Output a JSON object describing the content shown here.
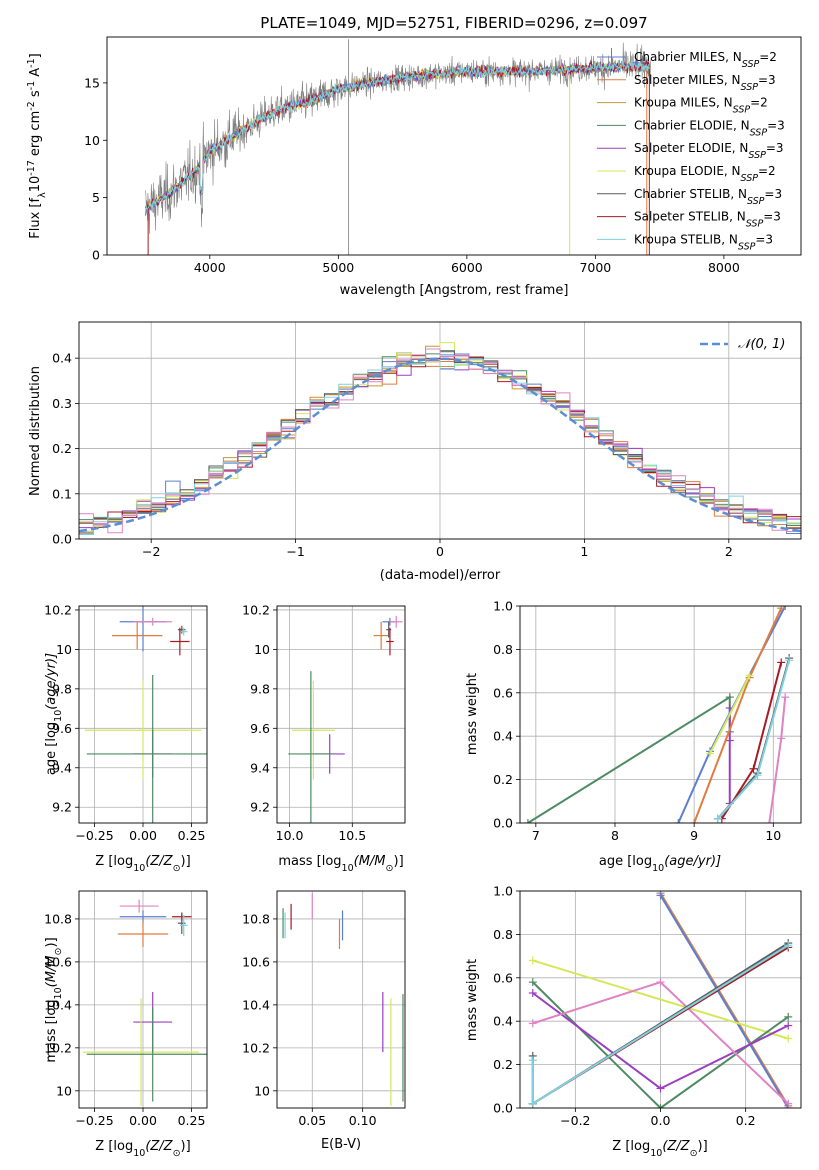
{
  "colors": {
    "chabrier_miles": "#5b7fd0",
    "salpeter_miles": "#e07c3e",
    "kroupa_miles": "#c7963a",
    "chabrier_elodie": "#4f8a63",
    "salpeter_elodie": "#9b3fc0",
    "kroupa_elodie": "#d4e85a",
    "chabrier_stelib": "#5c5c5c",
    "salpeter_stelib": "#a51c24",
    "kroupa_stelib": "#7fd1df",
    "pink": "#e083c4",
    "gaussian": "#5b8fd4",
    "grid": "#b0b0b0"
  },
  "chart_data": [
    {
      "id": "spectrum",
      "type": "line",
      "title": "PLATE=1049, MJD=52751, FIBERID=0296, z=0.097",
      "xlabel": "wavelength [Angstrom, rest frame]",
      "ylabel_main": "Flux [f",
      "ylabel_sub1": "λ",
      "ylabel_mid": "10",
      "ylabel_sup1": "-17",
      "ylabel_tail": " erg cm",
      "ylabel_sup2": "-2",
      "ylabel_tail2": " s",
      "ylabel_sup3": "-1",
      "ylabel_tail3": " A",
      "ylabel_sup4": "-1",
      "ylabel_end": "]",
      "xlim": [
        3200,
        8600
      ],
      "ylim": [
        0,
        19
      ],
      "xticks": [
        4000,
        5000,
        6000,
        7000,
        8000
      ],
      "yticks": [
        0,
        5,
        10,
        15
      ],
      "legend": "upper-right",
      "series": [
        {
          "name": "Chabrier MILES, N",
          "sub": "SSP",
          "suffix": "=2",
          "color_key": "chabrier_miles"
        },
        {
          "name": "Salpeter MILES, N",
          "sub": "SSP",
          "suffix": "=3",
          "color_key": "salpeter_miles"
        },
        {
          "name": "Kroupa MILES, N",
          "sub": "SSP",
          "suffix": "=2",
          "color_key": "kroupa_miles"
        },
        {
          "name": "Chabrier ELODIE, N",
          "sub": "SSP",
          "suffix": "=3",
          "color_key": "chabrier_elodie"
        },
        {
          "name": "Salpeter ELODIE, N",
          "sub": "SSP",
          "suffix": "=3",
          "color_key": "salpeter_elodie"
        },
        {
          "name": "Kroupa ELODIE, N",
          "sub": "SSP",
          "suffix": "=2",
          "color_key": "kroupa_elodie"
        },
        {
          "name": "Chabrier STELIB, N",
          "sub": "SSP",
          "suffix": "=3",
          "color_key": "chabrier_stelib"
        },
        {
          "name": "Salpeter STELIB, N",
          "sub": "SSP",
          "suffix": "=3",
          "color_key": "salpeter_stelib"
        },
        {
          "name": "Kroupa STELIB, N",
          "sub": "SSP",
          "suffix": "=3",
          "color_key": "kroupa_stelib"
        }
      ],
      "continuum": [
        [
          3500,
          4.0
        ],
        [
          3700,
          5.5
        ],
        [
          3900,
          7.5
        ],
        [
          4000,
          9.0
        ],
        [
          4200,
          10.5
        ],
        [
          4500,
          12.5
        ],
        [
          4800,
          13.5
        ],
        [
          5000,
          14.5
        ],
        [
          5500,
          15.5
        ],
        [
          6000,
          16.0
        ],
        [
          6500,
          16.0
        ],
        [
          7000,
          16.3
        ],
        [
          7400,
          16.5
        ]
      ]
    },
    {
      "id": "residuals",
      "type": "histogram",
      "xlabel": "(data-model)/error",
      "ylabel": "Normed distribution",
      "xlim": [
        -2.5,
        2.5
      ],
      "ylim": [
        0,
        0.48
      ],
      "xticks": [
        -2,
        -1,
        0,
        1,
        2
      ],
      "xtick_labels": [
        "−2",
        "−1",
        "0",
        "1",
        "2"
      ],
      "yticks": [
        0,
        0.1,
        0.2,
        0.3,
        0.4
      ],
      "ytick_labels": [
        "0.0",
        "0.1",
        "0.2",
        "0.3",
        "0.4"
      ],
      "bin_width": 0.1,
      "gaussian_label": "𝒩(0, 1)",
      "legend": "upper-right"
    },
    {
      "id": "age_vs_z",
      "type": "scatter",
      "xlabel": "Z [log",
      "xlabel_sub": "10",
      "xlabel_tail": "(Z/Z",
      "xlabel_sub2": "⊙",
      "xlabel_end": ")]",
      "ylabel": "age  [log",
      "ylabel_sub": "10",
      "ylabel_tail": "(age/yr)]",
      "xlim": [
        -0.33,
        0.33
      ],
      "ylim": [
        9.12,
        10.22
      ],
      "xticks": [
        -0.25,
        0,
        0.25
      ],
      "xtick_labels": [
        "−0.25",
        "0.00",
        "0.25"
      ],
      "yticks": [
        9.2,
        9.4,
        9.6,
        9.8,
        10.0,
        10.2
      ],
      "points": [
        {
          "x": 0.0,
          "y": 10.14,
          "xerr": 0.12,
          "yerr": 0.15,
          "color_key": "chabrier_miles"
        },
        {
          "x": -0.03,
          "y": 10.07,
          "xerr": 0.13,
          "yerr": 0.07,
          "color_key": "salpeter_miles"
        },
        {
          "x": 0.05,
          "y": 10.14,
          "xerr": 0.1,
          "yerr": 0.02,
          "color_key": "pink"
        },
        {
          "x": 0.2,
          "y": 10.1,
          "xerr": 0.02,
          "yerr": 0.02,
          "color_key": "chabrier_stelib"
        },
        {
          "x": 0.21,
          "y": 10.09,
          "xerr": 0.02,
          "yerr": 0.02,
          "color_key": "kroupa_stelib"
        },
        {
          "x": 0.19,
          "y": 10.04,
          "xerr": 0.05,
          "yerr": 0.07,
          "color_key": "salpeter_stelib"
        },
        {
          "x": 0.0,
          "y": 9.59,
          "xerr": 0.3,
          "yerr": 0.25,
          "color_key": "kroupa_elodie"
        },
        {
          "x": 0.05,
          "y": 9.47,
          "xerr": 0.1,
          "yerr": 0.12,
          "color_key": "salpeter_elodie"
        },
        {
          "x": 0.05,
          "y": 9.47,
          "xerr": 0.34,
          "yerr": 0.4,
          "color_key": "chabrier_elodie"
        }
      ]
    },
    {
      "id": "age_vs_mass",
      "type": "scatter",
      "xlabel": "mass [log",
      "xlabel_sub": "10",
      "xlabel_tail": "(M/M",
      "xlabel_sub2": "⊙",
      "xlabel_end": ")]",
      "ylabel": "",
      "xlim": [
        9.9,
        10.92
      ],
      "ylim": [
        9.12,
        10.22
      ],
      "xticks": [
        10.0,
        10.5
      ],
      "xtick_labels": [
        "10.0",
        "10.5"
      ],
      "yticks": [
        9.2,
        9.4,
        9.6,
        9.8,
        10.0,
        10.2
      ],
      "points": [
        {
          "x": 10.8,
          "y": 10.14,
          "xerr": 0.06,
          "yerr": 0.02,
          "color_key": "chabrier_miles"
        },
        {
          "x": 10.73,
          "y": 10.07,
          "xerr": 0.06,
          "yerr": 0.07,
          "color_key": "salpeter_miles"
        },
        {
          "x": 10.85,
          "y": 10.14,
          "xerr": 0.05,
          "yerr": 0.03,
          "color_key": "pink"
        },
        {
          "x": 10.79,
          "y": 10.1,
          "xerr": 0.02,
          "yerr": 0.04,
          "color_key": "chabrier_stelib"
        },
        {
          "x": 10.8,
          "y": 10.04,
          "xerr": 0.03,
          "yerr": 0.07,
          "color_key": "salpeter_stelib"
        },
        {
          "x": 10.19,
          "y": 9.59,
          "xerr": 0.17,
          "yerr": 0.25,
          "color_key": "kroupa_elodie"
        },
        {
          "x": 10.32,
          "y": 9.47,
          "xerr": 0.12,
          "yerr": 0.1,
          "color_key": "salpeter_elodie"
        },
        {
          "x": 10.17,
          "y": 9.47,
          "xerr": 0.18,
          "yerr": 0.42,
          "color_key": "chabrier_elodie"
        }
      ]
    },
    {
      "id": "weight_vs_age",
      "type": "line",
      "xlabel": "age  [log",
      "xlabel_sub": "10",
      "xlabel_tail": "(age/yr)]",
      "ylabel": "mass weight",
      "xlim": [
        6.8,
        10.35
      ],
      "ylim": [
        0,
        1
      ],
      "xticks": [
        7,
        8,
        9,
        10
      ],
      "yticks": [
        0,
        0.2,
        0.4,
        0.6,
        0.8,
        1.0
      ],
      "ytick_labels": [
        "0.0",
        "0.2",
        "0.4",
        "0.6",
        "0.8",
        "1.0"
      ],
      "series": [
        {
          "color_key": "chabrier_elodie",
          "x": [
            6.9,
            9.45,
            9.45
          ],
          "y": [
            0.0,
            0.58,
            0.42
          ]
        },
        {
          "color_key": "salpeter_elodie",
          "x": [
            9.45,
            9.45,
            9.45
          ],
          "y": [
            0.53,
            0.38,
            0.09
          ]
        },
        {
          "color_key": "chabrier_miles",
          "x": [
            8.8,
            9.2,
            10.15
          ],
          "y": [
            0.0,
            0.33,
            1.0
          ]
        },
        {
          "color_key": "salpeter_miles",
          "x": [
            9.0,
            9.7,
            10.1
          ],
          "y": [
            0.0,
            0.67,
            0.99
          ]
        },
        {
          "color_key": "kroupa_elodie",
          "x": [
            9.2,
            9.7
          ],
          "y": [
            0.32,
            0.68
          ]
        },
        {
          "color_key": "chabrier_stelib",
          "x": [
            9.3,
            9.8,
            10.2
          ],
          "y": [
            0.02,
            0.23,
            0.76
          ]
        },
        {
          "color_key": "salpeter_stelib",
          "x": [
            9.35,
            9.75,
            10.1
          ],
          "y": [
            0.02,
            0.25,
            0.74
          ]
        },
        {
          "color_key": "kroupa_stelib",
          "x": [
            9.3,
            9.8,
            10.2
          ],
          "y": [
            0.02,
            0.22,
            0.75
          ]
        },
        {
          "color_key": "pink",
          "x": [
            9.95,
            10.1,
            10.15
          ],
          "y": [
            0.0,
            0.39,
            0.58
          ]
        }
      ]
    },
    {
      "id": "mass_vs_z",
      "type": "scatter",
      "xlabel": "Z [log",
      "xlabel_sub": "10",
      "xlabel_tail": "(Z/Z",
      "xlabel_sub2": "⊙",
      "xlabel_end": ")]",
      "ylabel": "mass [log",
      "ylabel_sub": "10",
      "ylabel_tail": "(M/M",
      "ylabel_sub2": "⊙",
      "ylabel_end": ")]",
      "xlim": [
        -0.33,
        0.33
      ],
      "ylim": [
        9.92,
        10.93
      ],
      "xticks": [
        -0.25,
        0,
        0.25
      ],
      "xtick_labels": [
        "−0.25",
        "0.00",
        "0.25"
      ],
      "yticks": [
        10.0,
        10.2,
        10.4,
        10.6,
        10.8
      ],
      "points": [
        {
          "x": 0.0,
          "y": 10.81,
          "xerr": 0.12,
          "yerr": 0.03,
          "color_key": "chabrier_miles"
        },
        {
          "x": 0.0,
          "y": 10.73,
          "xerr": 0.13,
          "yerr": 0.06,
          "color_key": "salpeter_miles"
        },
        {
          "x": -0.02,
          "y": 10.86,
          "xerr": 0.1,
          "yerr": 0.03,
          "color_key": "pink"
        },
        {
          "x": 0.2,
          "y": 10.81,
          "xerr": 0.05,
          "yerr": 0.02,
          "color_key": "salpeter_stelib"
        },
        {
          "x": 0.2,
          "y": 10.78,
          "xerr": 0.02,
          "yerr": 0.05,
          "color_key": "chabrier_stelib"
        },
        {
          "x": 0.21,
          "y": 10.77,
          "xerr": 0.02,
          "yerr": 0.05,
          "color_key": "kroupa_stelib"
        },
        {
          "x": 0.05,
          "y": 10.32,
          "xerr": 0.1,
          "yerr": 0.14,
          "color_key": "salpeter_elodie"
        },
        {
          "x": -0.01,
          "y": 10.18,
          "xerr": 0.3,
          "yerr": 0.25,
          "color_key": "kroupa_elodie"
        },
        {
          "x": 0.05,
          "y": 10.17,
          "xerr": 0.34,
          "yerr": 0.22,
          "color_key": "chabrier_elodie"
        }
      ]
    },
    {
      "id": "mass_vs_ebv",
      "type": "errorbar",
      "xlabel": "E(B-V)",
      "ylabel": "",
      "xlim": [
        0.015,
        0.142
      ],
      "ylim": [
        9.92,
        10.93
      ],
      "xticks": [
        0.05,
        0.1
      ],
      "xtick_labels": [
        "0.05",
        "0.10"
      ],
      "yticks": [
        10.0,
        10.2,
        10.4,
        10.6,
        10.8
      ],
      "points": [
        {
          "x": 0.021,
          "y": 10.78,
          "yerr": 0.07,
          "color_key": "chabrier_elodie"
        },
        {
          "x": 0.023,
          "y": 10.77,
          "yerr": 0.06,
          "color_key": "kroupa_stelib"
        },
        {
          "x": 0.029,
          "y": 10.81,
          "yerr": 0.06,
          "color_key": "salpeter_stelib"
        },
        {
          "x": 0.05,
          "y": 10.86,
          "yerr": 0.06,
          "color_key": "pink"
        },
        {
          "x": 0.077,
          "y": 10.73,
          "yerr": 0.07,
          "color_key": "salpeter_miles"
        },
        {
          "x": 0.08,
          "y": 10.77,
          "yerr": 0.07,
          "color_key": "chabrier_miles"
        },
        {
          "x": 0.12,
          "y": 10.32,
          "yerr": 0.14,
          "color_key": "salpeter_elodie"
        },
        {
          "x": 0.128,
          "y": 10.18,
          "yerr": 0.25,
          "color_key": "kroupa_elodie"
        },
        {
          "x": 0.14,
          "y": 10.2,
          "yerr": 0.25,
          "color_key": "chabrier_elodie"
        }
      ]
    },
    {
      "id": "weight_vs_z",
      "type": "line",
      "xlabel": "Z [log",
      "xlabel_sub": "10",
      "xlabel_tail": "(Z/Z",
      "xlabel_sub2": "⊙",
      "xlabel_end": ")]",
      "ylabel": "mass weight",
      "xlim": [
        -0.33,
        0.33
      ],
      "ylim": [
        0,
        1
      ],
      "xticks": [
        -0.2,
        0,
        0.2
      ],
      "xtick_labels": [
        "−0.2",
        "0.0",
        "0.2"
      ],
      "yticks": [
        0,
        0.2,
        0.4,
        0.6,
        0.8,
        1.0
      ],
      "ytick_labels": [
        "0.0",
        "0.2",
        "0.4",
        "0.6",
        "0.8",
        "1.0"
      ],
      "series": [
        {
          "color_key": "salpeter_miles",
          "x": [
            0.0,
            0.3
          ],
          "y": [
            0.99,
            0.01
          ]
        },
        {
          "color_key": "chabrier_miles",
          "x": [
            0.0,
            0.3
          ],
          "y": [
            0.98,
            0.0
          ]
        },
        {
          "color_key": "kroupa_elodie",
          "x": [
            -0.3,
            0.3
          ],
          "y": [
            0.68,
            0.32
          ]
        },
        {
          "color_key": "chabrier_elodie",
          "x": [
            -0.3,
            0.0,
            0.3
          ],
          "y": [
            0.58,
            0.0,
            0.42
          ]
        },
        {
          "color_key": "salpeter_elodie",
          "x": [
            -0.3,
            0.0,
            0.3
          ],
          "y": [
            0.53,
            0.09,
            0.38
          ]
        },
        {
          "color_key": "pink",
          "x": [
            -0.3,
            0.0,
            0.3
          ],
          "y": [
            0.39,
            0.58,
            0.02
          ]
        },
        {
          "color_key": "chabrier_stelib",
          "x": [
            -0.3,
            -0.3,
            0.3
          ],
          "y": [
            0.24,
            0.02,
            0.76
          ]
        },
        {
          "color_key": "salpeter_stelib",
          "x": [
            -0.3,
            0.3
          ],
          "y": [
            0.02,
            0.74
          ]
        },
        {
          "color_key": "kroupa_stelib",
          "x": [
            -0.3,
            -0.3,
            0.3
          ],
          "y": [
            0.22,
            0.02,
            0.75
          ]
        }
      ]
    }
  ]
}
